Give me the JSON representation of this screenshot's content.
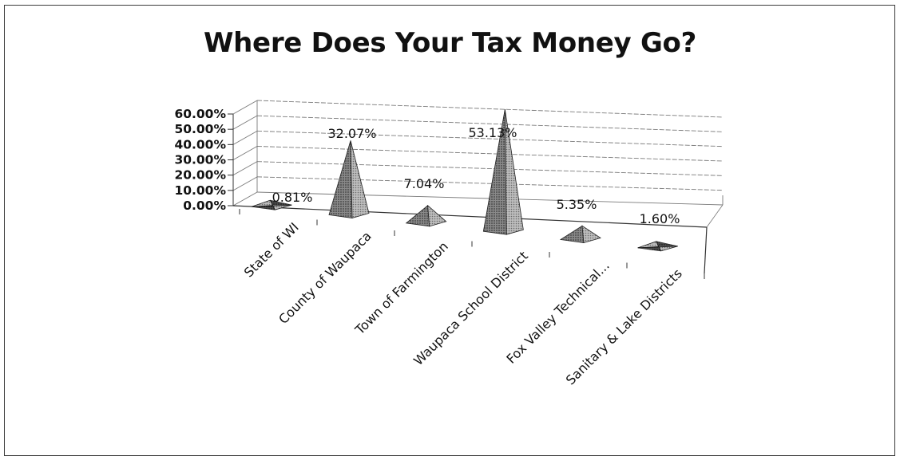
{
  "chart_data": {
    "type": "bar",
    "style": "3d-pyramid",
    "title": "Where Does Your Tax Money Go?",
    "categories": [
      "State of WI",
      "County of Waupaca",
      "Town of Farmington",
      "Waupaca School District",
      "Fox Valley Technical...",
      "Sanitary & Lake Districts"
    ],
    "values": [
      0.81,
      32.07,
      7.04,
      53.13,
      5.35,
      1.6
    ],
    "data_labels": [
      "0.81%",
      "32.07%",
      "7.04%",
      "53.13%",
      "5.35%",
      "1.60%"
    ],
    "y_ticks": [
      "0.00%",
      "10.00%",
      "20.00%",
      "30.00%",
      "40.00%",
      "50.00%",
      "60.00%"
    ],
    "ylim": [
      0,
      60
    ],
    "grid": true,
    "legend": "none",
    "colors": {
      "pyramid": "#6e6e6e",
      "pyramid_dark": "#3a3a3a",
      "pyramid_light": "#c8c8c8",
      "grid": "#7a7a7a"
    }
  }
}
